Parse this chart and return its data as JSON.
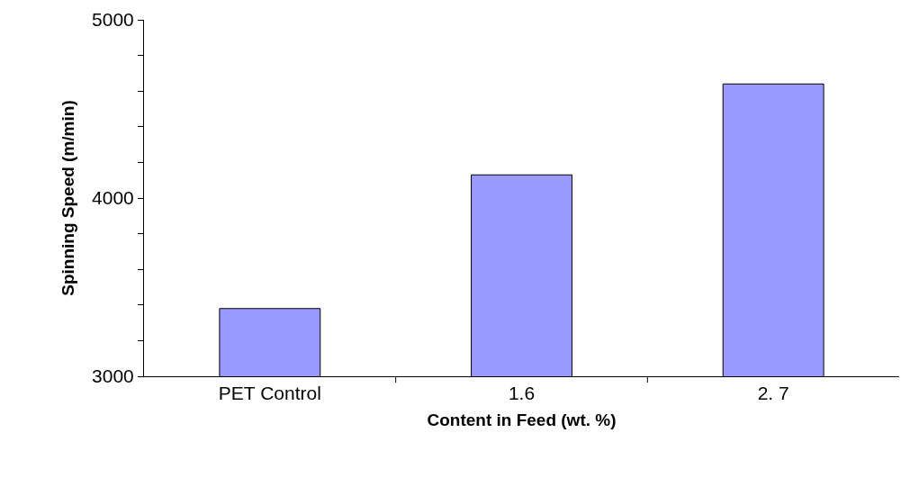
{
  "chart_data": {
    "type": "bar",
    "xlabel": "Content in Feed (wt. %)",
    "ylabel": "Spinning Speed (m/min)",
    "categories": [
      "PET Control",
      "1.6",
      "2. 7"
    ],
    "values": [
      3380,
      4130,
      4640
    ],
    "color": "#9999ff",
    "ylim": [
      3000,
      5000
    ],
    "yticks": [
      3000,
      {
        "value": 3200,
        "label": null
      },
      {
        "value": 3400,
        "label": null
      },
      {
        "value": 3600,
        "label": null
      },
      {
        "value": 3800,
        "label": null
      },
      4000,
      {
        "value": 4200,
        "label": null
      },
      {
        "value": 4400,
        "label": null
      },
      {
        "value": 4600,
        "label": null
      },
      {
        "value": 4800,
        "label": null
      },
      5000
    ],
    "grid": false
  }
}
